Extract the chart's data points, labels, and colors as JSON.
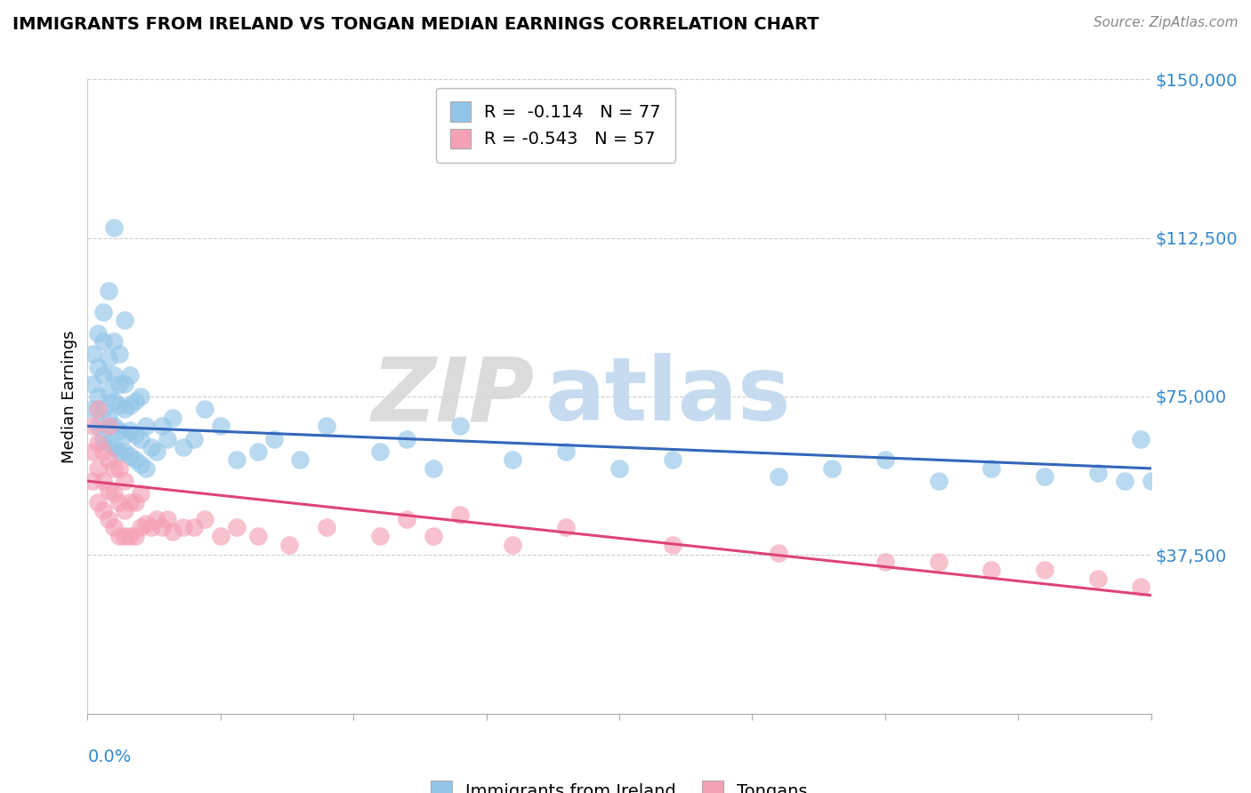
{
  "title": "IMMIGRANTS FROM IRELAND VS TONGAN MEDIAN EARNINGS CORRELATION CHART",
  "source": "Source: ZipAtlas.com",
  "ylabel": "Median Earnings",
  "xmin": 0.0,
  "xmax": 0.2,
  "ymin": 0,
  "ymax": 150000,
  "yticks": [
    37500,
    75000,
    112500,
    150000
  ],
  "ytick_labels": [
    "$37,500",
    "$75,000",
    "$112,500",
    "$150,000"
  ],
  "watermark_zip": "ZIP",
  "watermark_atlas": "atlas",
  "legend_blue_label": "R =  -0.114   N = 77",
  "legend_pink_label": "R = -0.543   N = 57",
  "legend_bottom_blue": "Immigrants from Ireland",
  "legend_bottom_pink": "Tongans",
  "blue_color": "#92c5e8",
  "pink_color": "#f4a0b5",
  "blue_line_color": "#3366bb",
  "pink_line_color": "#dd4477",
  "blue_line_y0": 68000,
  "blue_line_y1": 58000,
  "pink_line_y0": 55000,
  "pink_line_y1": 28000,
  "blue_points_x": [
    0.001,
    0.001,
    0.001,
    0.002,
    0.002,
    0.002,
    0.002,
    0.003,
    0.003,
    0.003,
    0.003,
    0.003,
    0.004,
    0.004,
    0.004,
    0.004,
    0.004,
    0.005,
    0.005,
    0.005,
    0.005,
    0.005,
    0.005,
    0.006,
    0.006,
    0.006,
    0.006,
    0.006,
    0.007,
    0.007,
    0.007,
    0.007,
    0.007,
    0.008,
    0.008,
    0.008,
    0.008,
    0.009,
    0.009,
    0.009,
    0.01,
    0.01,
    0.01,
    0.011,
    0.011,
    0.012,
    0.013,
    0.014,
    0.015,
    0.016,
    0.018,
    0.02,
    0.022,
    0.025,
    0.028,
    0.032,
    0.035,
    0.04,
    0.045,
    0.055,
    0.06,
    0.065,
    0.07,
    0.08,
    0.09,
    0.1,
    0.11,
    0.13,
    0.14,
    0.15,
    0.16,
    0.17,
    0.18,
    0.19,
    0.195,
    0.198,
    0.2
  ],
  "blue_points_y": [
    72000,
    78000,
    85000,
    68000,
    75000,
    82000,
    90000,
    65000,
    72000,
    80000,
    88000,
    95000,
    64000,
    70000,
    76000,
    84000,
    100000,
    63000,
    68000,
    74000,
    80000,
    88000,
    115000,
    62000,
    67000,
    73000,
    78000,
    85000,
    62000,
    66000,
    72000,
    78000,
    93000,
    61000,
    67000,
    73000,
    80000,
    60000,
    66000,
    74000,
    59000,
    65000,
    75000,
    58000,
    68000,
    63000,
    62000,
    68000,
    65000,
    70000,
    63000,
    65000,
    72000,
    68000,
    60000,
    62000,
    65000,
    60000,
    68000,
    62000,
    65000,
    58000,
    68000,
    60000,
    62000,
    58000,
    60000,
    56000,
    58000,
    60000,
    55000,
    58000,
    56000,
    57000,
    55000,
    65000,
    55000
  ],
  "pink_points_x": [
    0.001,
    0.001,
    0.001,
    0.002,
    0.002,
    0.002,
    0.002,
    0.003,
    0.003,
    0.003,
    0.004,
    0.004,
    0.004,
    0.004,
    0.005,
    0.005,
    0.005,
    0.006,
    0.006,
    0.006,
    0.007,
    0.007,
    0.007,
    0.008,
    0.008,
    0.009,
    0.009,
    0.01,
    0.01,
    0.011,
    0.012,
    0.013,
    0.014,
    0.015,
    0.016,
    0.018,
    0.02,
    0.022,
    0.025,
    0.028,
    0.032,
    0.038,
    0.045,
    0.055,
    0.06,
    0.065,
    0.07,
    0.08,
    0.09,
    0.11,
    0.13,
    0.15,
    0.16,
    0.17,
    0.18,
    0.19,
    0.198
  ],
  "pink_points_y": [
    55000,
    62000,
    68000,
    50000,
    58000,
    64000,
    72000,
    48000,
    55000,
    62000,
    46000,
    53000,
    60000,
    68000,
    44000,
    52000,
    58000,
    42000,
    50000,
    58000,
    42000,
    48000,
    55000,
    42000,
    50000,
    42000,
    50000,
    44000,
    52000,
    45000,
    44000,
    46000,
    44000,
    46000,
    43000,
    44000,
    44000,
    46000,
    42000,
    44000,
    42000,
    40000,
    44000,
    42000,
    46000,
    42000,
    47000,
    40000,
    44000,
    40000,
    38000,
    36000,
    36000,
    34000,
    34000,
    32000,
    30000
  ]
}
